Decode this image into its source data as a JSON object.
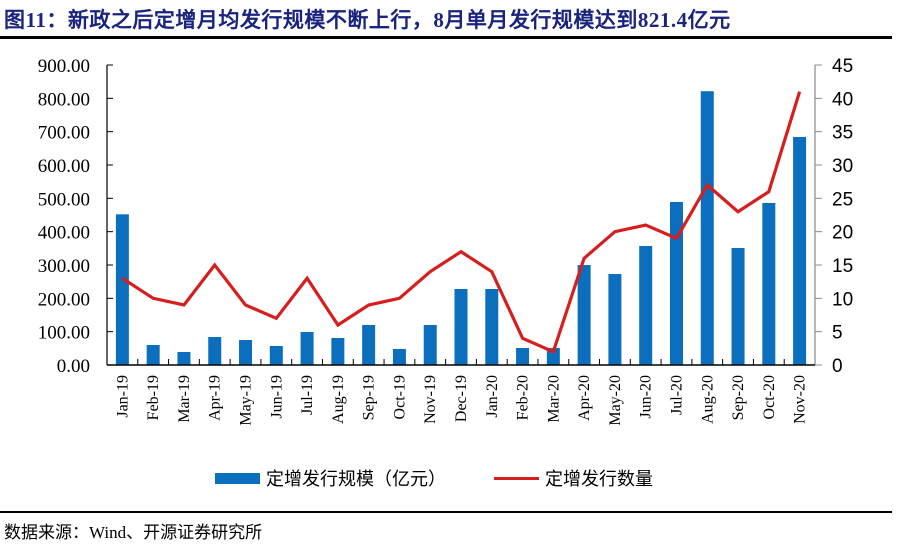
{
  "title": "图11：新政之后定增月均发行规模不断上行，8月单月发行规模达到821.4亿元",
  "source": "数据来源：Wind、开源证券研究所",
  "colors": {
    "bar": "#0b6fbe",
    "line": "#d71e1e",
    "title": "#1a237e"
  },
  "legend": {
    "bar_label": "定增发行规模（亿元）",
    "line_label": "定增发行数量"
  },
  "chart_data": {
    "type": "bar+line",
    "title": "新政之后定增月均发行规模不断上行，8月单月发行规模达到821.4亿元",
    "categories": [
      "Jan-19",
      "Feb-19",
      "Mar-19",
      "Apr-19",
      "May-19",
      "Jun-19",
      "Jul-19",
      "Aug-19",
      "Sep-19",
      "Oct-19",
      "Nov-19",
      "Dec-19",
      "Jan-20",
      "Feb-20",
      "Mar-20",
      "Apr-20",
      "May-20",
      "Jun-20",
      "Jul-20",
      "Aug-20",
      "Sep-20",
      "Oct-20",
      "Nov-20"
    ],
    "series": [
      {
        "name": "定增发行规模（亿元）",
        "type": "bar",
        "axis": "left",
        "values": [
          452,
          60,
          39,
          84,
          75,
          57,
          99,
          81,
          120,
          48,
          120,
          228,
          228,
          51,
          51,
          300,
          273,
          357,
          489,
          821.4,
          351,
          486,
          684
        ]
      },
      {
        "name": "定增发行数量",
        "type": "line",
        "axis": "right",
        "values": [
          13,
          10,
          9,
          15,
          9,
          7,
          13,
          6,
          9,
          10,
          14,
          17,
          14,
          4,
          2,
          16,
          20,
          21,
          19,
          27,
          23,
          26,
          41
        ]
      }
    ],
    "left_axis": {
      "ylim": [
        0,
        900
      ],
      "ticks": [
        "0.00",
        "100.00",
        "200.00",
        "300.00",
        "400.00",
        "500.00",
        "600.00",
        "700.00",
        "800.00",
        "900.00"
      ]
    },
    "right_axis": {
      "ylim": [
        0,
        45
      ],
      "ticks": [
        "0",
        "5",
        "10",
        "15",
        "20",
        "25",
        "30",
        "35",
        "40",
        "45"
      ]
    },
    "xlabel": "",
    "ylabel": "",
    "grid": false,
    "legend_position": "bottom"
  }
}
